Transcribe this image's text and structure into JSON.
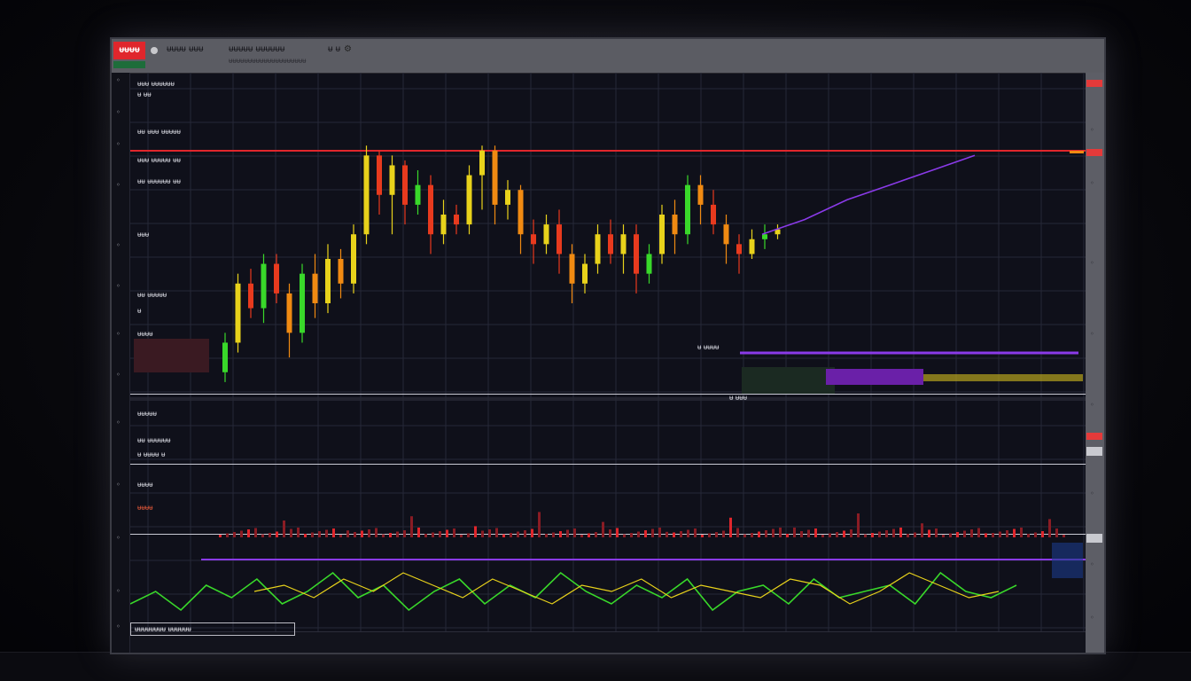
{
  "app": {
    "brand": "ᵾᵾᵾᵾ",
    "title_parts": [
      "ᵾᵾᵾᵾ ᵾᵾᵾ",
      "ᵾᵾᵾᵾᵾ ᵾᵾᵾᵾᵾᵾ",
      "ᵾ ᵾ"
    ],
    "subtitle": "ᵾᵾᵾᵾᵾᵾᵾᵾᵾᵾᵾᵾᵾᵾᵾᵾᵾᵾᵾᵾ"
  },
  "info_panel": {
    "lines": [
      "ᵾᵾᵾ ᵾᵾᵾᵾᵾᵾ",
      "ᵾ ᵾᵾ",
      "ᵾᵾ ᵾᵾᵾ ᵾᵾᵾᵾᵾ",
      "ᵾᵾᵾ ᵾᵾᵾᵾᵾ ᵾᵾ",
      "ᵾᵾ ᵾᵾᵾᵾᵾᵾ ᵾᵾ",
      "ᵾᵾᵾ",
      "ᵾᵾ ᵾᵾᵾᵾᵾ",
      "ᵾ",
      "ᵾᵾᵾᵾ"
    ],
    "panel2_label": "ᵾᵾᵾᵾᵾ",
    "panel2_lines": [
      "ᵾᵾ ᵾᵾᵾᵾᵾᵾ",
      "ᵾ ᵾᵾᵾᵾ ᵾ"
    ],
    "panel3_label": "ᵾᵾᵾᵾ",
    "mid_label": "ᵾ ᵾᵾᵾᵾ",
    "mid_label2": "ᵾ ᵾᵾᵾ",
    "osc_label": "ᵾᵾᵾᵾ",
    "status": "ᵾᵾᵾᵾᵾᵾᵾᵾ ᵾᵾᵾᵾᵾᵾ"
  },
  "colors": {
    "resistance": "#e0262c",
    "bull": "#39d82a",
    "neutral": "#e8d21b",
    "bear": "#e83a1e",
    "orange": "#f08a12",
    "ema": "#8a3ae8",
    "grid": "#262838"
  },
  "chart_data": {
    "type": "candlestick",
    "resistance_line": 0.87,
    "candles": [
      [
        0.42,
        0.48,
        0.4,
        0.5
      ],
      [
        0.48,
        0.6,
        0.46,
        0.62
      ],
      [
        0.6,
        0.55,
        0.53,
        0.63
      ],
      [
        0.55,
        0.64,
        0.52,
        0.66
      ],
      [
        0.64,
        0.58,
        0.56,
        0.66
      ],
      [
        0.58,
        0.5,
        0.45,
        0.6
      ],
      [
        0.5,
        0.62,
        0.48,
        0.64
      ],
      [
        0.62,
        0.56,
        0.53,
        0.66
      ],
      [
        0.56,
        0.65,
        0.54,
        0.68
      ],
      [
        0.65,
        0.6,
        0.57,
        0.67
      ],
      [
        0.6,
        0.7,
        0.58,
        0.72
      ],
      [
        0.7,
        0.86,
        0.68,
        0.88
      ],
      [
        0.86,
        0.78,
        0.74,
        0.87
      ],
      [
        0.78,
        0.84,
        0.7,
        0.86
      ],
      [
        0.84,
        0.76,
        0.72,
        0.85
      ],
      [
        0.76,
        0.8,
        0.74,
        0.83
      ],
      [
        0.8,
        0.7,
        0.66,
        0.82
      ],
      [
        0.7,
        0.74,
        0.68,
        0.77
      ],
      [
        0.74,
        0.72,
        0.7,
        0.76
      ],
      [
        0.72,
        0.82,
        0.7,
        0.84
      ],
      [
        0.82,
        0.87,
        0.75,
        0.88
      ],
      [
        0.87,
        0.76,
        0.72,
        0.88
      ],
      [
        0.76,
        0.79,
        0.73,
        0.81
      ],
      [
        0.79,
        0.7,
        0.66,
        0.8
      ],
      [
        0.7,
        0.68,
        0.64,
        0.73
      ],
      [
        0.68,
        0.72,
        0.66,
        0.74
      ],
      [
        0.72,
        0.66,
        0.62,
        0.75
      ],
      [
        0.66,
        0.6,
        0.56,
        0.68
      ],
      [
        0.6,
        0.64,
        0.58,
        0.66
      ],
      [
        0.64,
        0.7,
        0.62,
        0.72
      ],
      [
        0.7,
        0.66,
        0.64,
        0.73
      ],
      [
        0.66,
        0.7,
        0.62,
        0.72
      ],
      [
        0.7,
        0.62,
        0.58,
        0.72
      ],
      [
        0.62,
        0.66,
        0.6,
        0.68
      ],
      [
        0.66,
        0.74,
        0.64,
        0.76
      ],
      [
        0.74,
        0.7,
        0.66,
        0.77
      ],
      [
        0.7,
        0.8,
        0.68,
        0.82
      ],
      [
        0.8,
        0.76,
        0.72,
        0.82
      ],
      [
        0.76,
        0.72,
        0.7,
        0.79
      ],
      [
        0.72,
        0.68,
        0.64,
        0.74
      ],
      [
        0.68,
        0.66,
        0.62,
        0.7
      ],
      [
        0.66,
        0.69,
        0.65,
        0.71
      ],
      [
        0.69,
        0.7,
        0.67,
        0.72
      ],
      [
        0.7,
        0.71,
        0.69,
        0.72
      ]
    ],
    "ema_path": [
      [
        0.62,
        0.7
      ],
      [
        0.66,
        0.73
      ],
      [
        0.7,
        0.77
      ],
      [
        0.74,
        0.8
      ],
      [
        0.78,
        0.83
      ],
      [
        0.82,
        0.86
      ]
    ],
    "oscillator": [
      0.3,
      0.5,
      0.2,
      0.6,
      0.4,
      0.7,
      0.3,
      0.5,
      0.8,
      0.4,
      0.6,
      0.2,
      0.5,
      0.7,
      0.3,
      0.6,
      0.4,
      0.8,
      0.5,
      0.3,
      0.6,
      0.4,
      0.7,
      0.2,
      0.5,
      0.6,
      0.3,
      0.7,
      0.4,
      0.5,
      0.6,
      0.3,
      0.8,
      0.5,
      0.4,
      0.6
    ],
    "oscillator2": [
      0.5,
      0.6,
      0.4,
      0.7,
      0.5,
      0.8,
      0.6,
      0.4,
      0.7,
      0.5,
      0.3,
      0.6,
      0.5,
      0.7,
      0.4,
      0.6,
      0.5,
      0.4,
      0.7,
      0.6,
      0.3,
      0.5,
      0.8,
      0.6,
      0.4,
      0.5
    ]
  }
}
